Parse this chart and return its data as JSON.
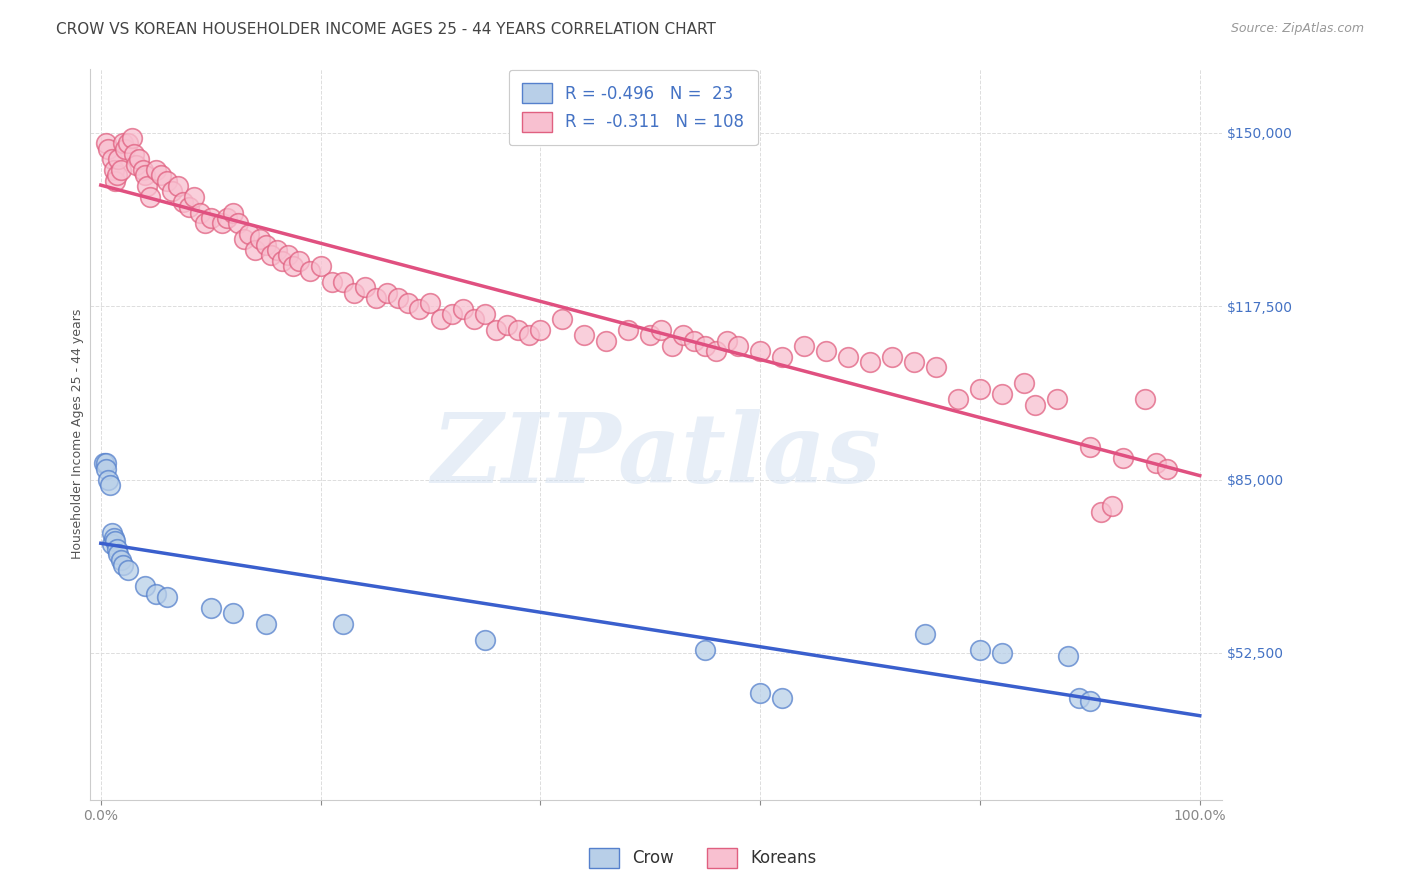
{
  "title": "CROW VS KOREAN HOUSEHOLDER INCOME AGES 25 - 44 YEARS CORRELATION CHART",
  "source": "Source: ZipAtlas.com",
  "ylabel": "Householder Income Ages 25 - 44 years",
  "ytick_labels": [
    "$52,500",
    "$85,000",
    "$117,500",
    "$150,000"
  ],
  "ytick_values": [
    52500,
    85000,
    117500,
    150000
  ],
  "ymin": 25000,
  "ymax": 162000,
  "xmin": -0.01,
  "xmax": 1.02,
  "crow_line_color": "#3a5fcd",
  "korean_line_color": "#e05080",
  "crow_scatter_fill": "#b8cfe8",
  "crow_scatter_edge": "#5580cc",
  "korean_scatter_fill": "#f8c0d0",
  "korean_scatter_edge": "#e06080",
  "legend_label_crow": "Crow",
  "legend_label_koreans": "Koreans",
  "watermark": "ZIPatlas",
  "crow_points": [
    [
      0.003,
      88000
    ],
    [
      0.005,
      88000
    ],
    [
      0.005,
      87000
    ],
    [
      0.007,
      85000
    ],
    [
      0.008,
      84000
    ],
    [
      0.01,
      75000
    ],
    [
      0.01,
      73000
    ],
    [
      0.012,
      74000
    ],
    [
      0.013,
      73500
    ],
    [
      0.015,
      72000
    ],
    [
      0.016,
      71000
    ],
    [
      0.018,
      70000
    ],
    [
      0.02,
      69000
    ],
    [
      0.025,
      68000
    ],
    [
      0.04,
      65000
    ],
    [
      0.05,
      63500
    ],
    [
      0.06,
      63000
    ],
    [
      0.1,
      61000
    ],
    [
      0.12,
      60000
    ],
    [
      0.15,
      58000
    ],
    [
      0.22,
      58000
    ],
    [
      0.35,
      55000
    ],
    [
      0.55,
      53000
    ],
    [
      0.6,
      45000
    ],
    [
      0.62,
      44000
    ],
    [
      0.75,
      56000
    ],
    [
      0.8,
      53000
    ],
    [
      0.82,
      52500
    ],
    [
      0.88,
      52000
    ],
    [
      0.89,
      44000
    ],
    [
      0.9,
      43500
    ]
  ],
  "korean_points": [
    [
      0.005,
      148000
    ],
    [
      0.007,
      147000
    ],
    [
      0.01,
      145000
    ],
    [
      0.012,
      143000
    ],
    [
      0.013,
      141000
    ],
    [
      0.015,
      142000
    ],
    [
      0.016,
      145000
    ],
    [
      0.018,
      143000
    ],
    [
      0.02,
      148000
    ],
    [
      0.022,
      147000
    ],
    [
      0.025,
      148000
    ],
    [
      0.028,
      149000
    ],
    [
      0.03,
      146000
    ],
    [
      0.032,
      144000
    ],
    [
      0.035,
      145000
    ],
    [
      0.038,
      143000
    ],
    [
      0.04,
      142000
    ],
    [
      0.042,
      140000
    ],
    [
      0.045,
      138000
    ],
    [
      0.05,
      143000
    ],
    [
      0.055,
      142000
    ],
    [
      0.06,
      141000
    ],
    [
      0.065,
      139000
    ],
    [
      0.07,
      140000
    ],
    [
      0.075,
      137000
    ],
    [
      0.08,
      136000
    ],
    [
      0.085,
      138000
    ],
    [
      0.09,
      135000
    ],
    [
      0.095,
      133000
    ],
    [
      0.1,
      134000
    ],
    [
      0.11,
      133000
    ],
    [
      0.115,
      134000
    ],
    [
      0.12,
      135000
    ],
    [
      0.125,
      133000
    ],
    [
      0.13,
      130000
    ],
    [
      0.135,
      131000
    ],
    [
      0.14,
      128000
    ],
    [
      0.145,
      130000
    ],
    [
      0.15,
      129000
    ],
    [
      0.155,
      127000
    ],
    [
      0.16,
      128000
    ],
    [
      0.165,
      126000
    ],
    [
      0.17,
      127000
    ],
    [
      0.175,
      125000
    ],
    [
      0.18,
      126000
    ],
    [
      0.19,
      124000
    ],
    [
      0.2,
      125000
    ],
    [
      0.21,
      122000
    ],
    [
      0.22,
      122000
    ],
    [
      0.23,
      120000
    ],
    [
      0.24,
      121000
    ],
    [
      0.25,
      119000
    ],
    [
      0.26,
      120000
    ],
    [
      0.27,
      119000
    ],
    [
      0.28,
      118000
    ],
    [
      0.29,
      117000
    ],
    [
      0.3,
      118000
    ],
    [
      0.31,
      115000
    ],
    [
      0.32,
      116000
    ],
    [
      0.33,
      117000
    ],
    [
      0.34,
      115000
    ],
    [
      0.35,
      116000
    ],
    [
      0.36,
      113000
    ],
    [
      0.37,
      114000
    ],
    [
      0.38,
      113000
    ],
    [
      0.39,
      112000
    ],
    [
      0.4,
      113000
    ],
    [
      0.42,
      115000
    ],
    [
      0.44,
      112000
    ],
    [
      0.46,
      111000
    ],
    [
      0.48,
      113000
    ],
    [
      0.5,
      112000
    ],
    [
      0.51,
      113000
    ],
    [
      0.52,
      110000
    ],
    [
      0.53,
      112000
    ],
    [
      0.54,
      111000
    ],
    [
      0.55,
      110000
    ],
    [
      0.56,
      109000
    ],
    [
      0.57,
      111000
    ],
    [
      0.58,
      110000
    ],
    [
      0.6,
      109000
    ],
    [
      0.62,
      108000
    ],
    [
      0.64,
      110000
    ],
    [
      0.66,
      109000
    ],
    [
      0.68,
      108000
    ],
    [
      0.7,
      107000
    ],
    [
      0.72,
      108000
    ],
    [
      0.74,
      107000
    ],
    [
      0.76,
      106000
    ],
    [
      0.78,
      100000
    ],
    [
      0.8,
      102000
    ],
    [
      0.82,
      101000
    ],
    [
      0.84,
      103000
    ],
    [
      0.85,
      99000
    ],
    [
      0.87,
      100000
    ],
    [
      0.9,
      91000
    ],
    [
      0.91,
      79000
    ],
    [
      0.92,
      80000
    ],
    [
      0.93,
      89000
    ],
    [
      0.95,
      100000
    ],
    [
      0.96,
      88000
    ],
    [
      0.97,
      87000
    ]
  ],
  "title_fontsize": 11,
  "axis_label_fontsize": 9,
  "tick_fontsize": 10,
  "source_fontsize": 9,
  "background_color": "#ffffff",
  "grid_color": "#dddddd"
}
